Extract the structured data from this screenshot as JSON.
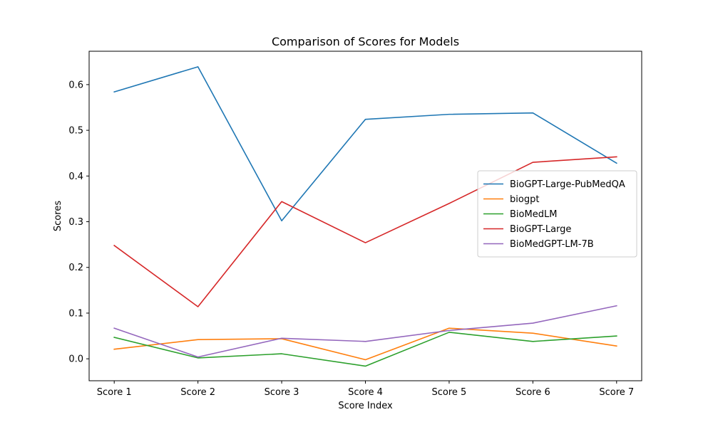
{
  "chart_data": {
    "type": "line",
    "title": "Comparison of Scores for Models",
    "xlabel": "Score Index",
    "ylabel": "Scores",
    "categories": [
      "Score 1",
      "Score 2",
      "Score 3",
      "Score 4",
      "Score 5",
      "Score 6",
      "Score 7"
    ],
    "ylim": [
      -0.048,
      0.673
    ],
    "yticks": [
      0.0,
      0.1,
      0.2,
      0.3,
      0.4,
      0.5,
      0.6
    ],
    "ytick_labels": [
      "0.0",
      "0.1",
      "0.2",
      "0.3",
      "0.4",
      "0.5",
      "0.6"
    ],
    "grid": false,
    "legend_position": "center-right",
    "series": [
      {
        "name": "BioGPT-Large-PubMedQA",
        "color": "#1f77b4",
        "values": [
          0.584,
          0.639,
          0.302,
          0.524,
          0.535,
          0.538,
          0.428
        ]
      },
      {
        "name": "biogpt",
        "color": "#ff7f0e",
        "values": [
          0.021,
          0.042,
          0.044,
          -0.002,
          0.067,
          0.056,
          0.028
        ]
      },
      {
        "name": "BioMedLM",
        "color": "#2ca02c",
        "values": [
          0.047,
          0.002,
          0.011,
          -0.016,
          0.058,
          0.038,
          0.05
        ]
      },
      {
        "name": "BioGPT-Large",
        "color": "#d62728",
        "values": [
          0.248,
          0.114,
          0.344,
          0.254,
          0.34,
          0.43,
          0.442
        ]
      },
      {
        "name": "BioMedGPT-LM-7B",
        "color": "#9467bd",
        "values": [
          0.067,
          0.004,
          0.045,
          0.038,
          0.062,
          0.078,
          0.116
        ]
      }
    ]
  }
}
